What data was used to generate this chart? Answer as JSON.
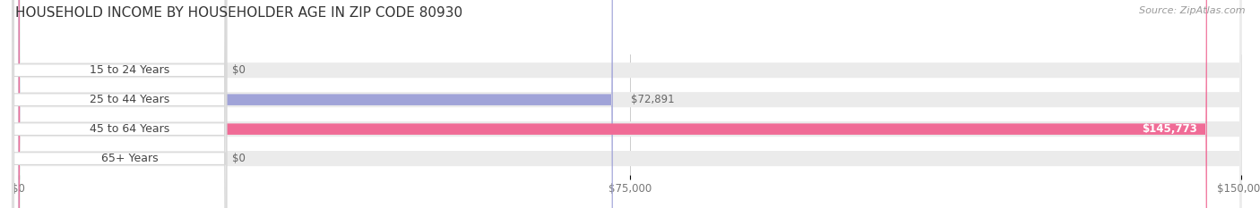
{
  "title": "HOUSEHOLD INCOME BY HOUSEHOLDER AGE IN ZIP CODE 80930",
  "source": "Source: ZipAtlas.com",
  "categories": [
    "15 to 24 Years",
    "25 to 44 Years",
    "45 to 64 Years",
    "65+ Years"
  ],
  "values": [
    0,
    72891,
    145773,
    0
  ],
  "bar_colors": [
    "#5ececa",
    "#a0a3d8",
    "#f06b96",
    "#f5c99b"
  ],
  "track_color": "#ebebeb",
  "xlim_max": 150000,
  "xticks": [
    0,
    75000,
    150000
  ],
  "xtick_labels": [
    "$0",
    "$75,000",
    "$150,000"
  ],
  "value_labels": [
    "$0",
    "$72,891",
    "$145,773",
    "$0"
  ],
  "figsize": [
    14.06,
    2.33
  ],
  "dpi": 100,
  "title_fontsize": 11,
  "source_fontsize": 8,
  "label_fontsize": 9,
  "value_fontsize": 8.5
}
